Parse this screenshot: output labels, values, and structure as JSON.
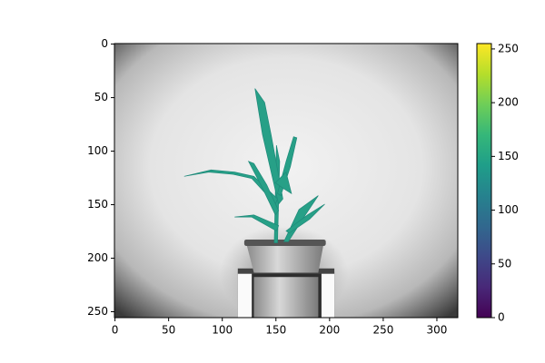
{
  "chart_data": {
    "type": "image",
    "xlim": [
      -0.5,
      319.5
    ],
    "xticks": [
      0,
      50,
      100,
      150,
      200,
      250,
      300
    ],
    "ylim": [
      255.5,
      -0.5
    ],
    "yticks": [
      0,
      50,
      100,
      150,
      200,
      250
    ],
    "colorbar": {
      "colormap": "viridis",
      "clim": [
        0,
        255
      ],
      "ticks": [
        0,
        50,
        100,
        150,
        200,
        250
      ]
    }
  }
}
